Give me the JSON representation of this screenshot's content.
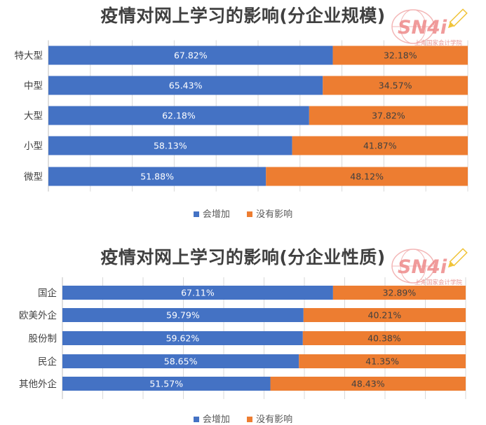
{
  "colors": {
    "increase": "#4472c4",
    "no_effect": "#ed7d31",
    "grid": "#d9d9d9",
    "axis": "#bfbfbf"
  },
  "logo": {
    "mark": "SN4i",
    "org_line1": "上海国家会计学院",
    "org_line2": "会计信息调查中心",
    "icon": "pencil-icon"
  },
  "chart_data": [
    {
      "type": "bar",
      "orientation": "horizontal",
      "stacked": "percent",
      "title": "疫情对网上学习的影响(分企业规模)",
      "categories": [
        "特大型",
        "中型",
        "大型",
        "小型",
        "微型"
      ],
      "series": [
        {
          "name": "会增加",
          "values": [
            67.82,
            65.43,
            62.18,
            58.13,
            51.88
          ],
          "labels": [
            "67.82%",
            "65.43%",
            "62.18%",
            "58.13%",
            "51.88%"
          ]
        },
        {
          "name": "没有影响",
          "values": [
            32.18,
            34.57,
            37.82,
            41.87,
            48.12
          ],
          "labels": [
            "32.18%",
            "34.57%",
            "37.82%",
            "41.87%",
            "48.12%"
          ]
        }
      ],
      "xlim": [
        0,
        100
      ],
      "grid": true,
      "legend": "bottom"
    },
    {
      "type": "bar",
      "orientation": "horizontal",
      "stacked": "percent",
      "title": "疫情对网上学习的影响(分企业性质)",
      "categories": [
        "国企",
        "欧美外企",
        "股份制",
        "民企",
        "其他外企"
      ],
      "series": [
        {
          "name": "会增加",
          "values": [
            67.11,
            59.79,
            59.62,
            58.65,
            51.57
          ],
          "labels": [
            "67.11%",
            "59.79%",
            "59.62%",
            "58.65%",
            "51.57%"
          ]
        },
        {
          "name": "没有影响",
          "values": [
            32.89,
            40.21,
            40.38,
            41.35,
            48.43
          ],
          "labels": [
            "32.89%",
            "40.21%",
            "40.38%",
            "41.35%",
            "48.43%"
          ]
        }
      ],
      "xlim": [
        0,
        100
      ],
      "grid": true,
      "legend": "bottom"
    }
  ]
}
